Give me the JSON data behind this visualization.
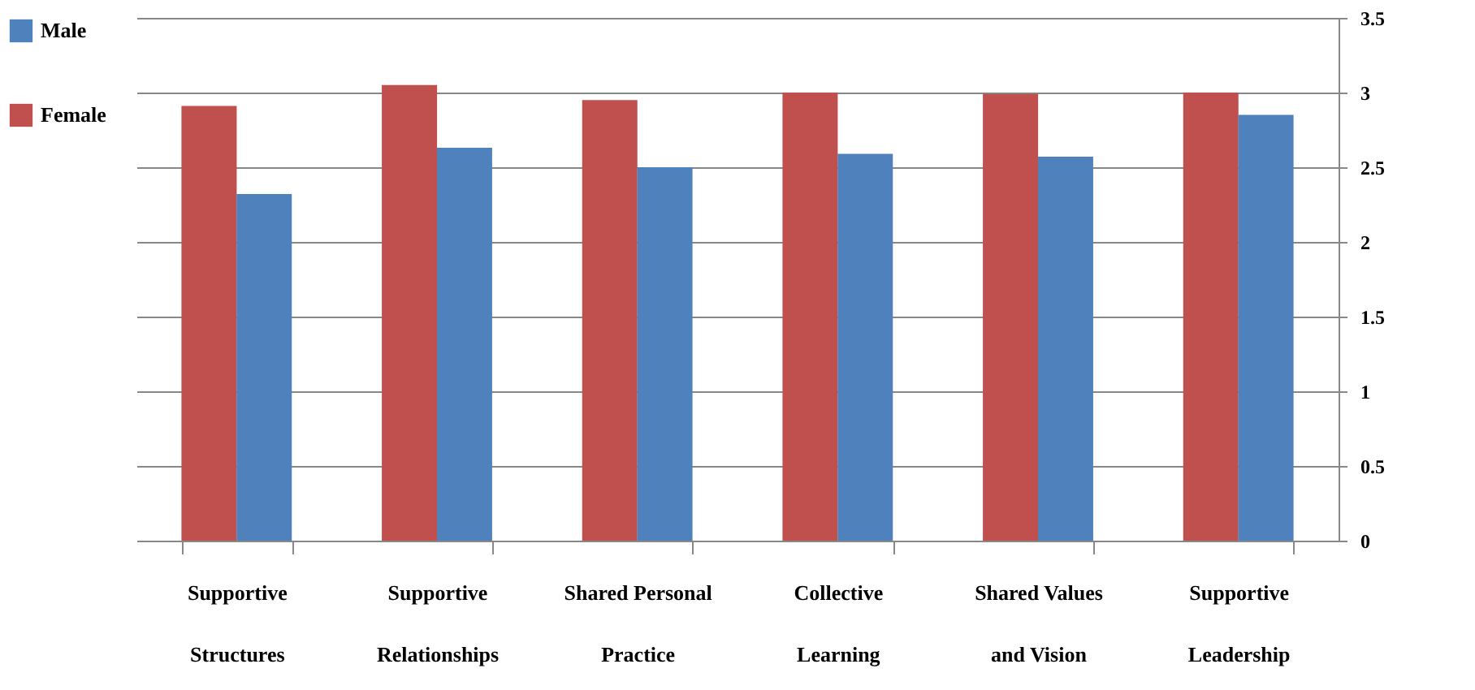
{
  "chart_data": {
    "type": "bar",
    "categories": [
      "Supportive Structures",
      "Supportive Relationships",
      "Shared Personal Practice",
      "Collective Learning",
      "Shared Values and Vision",
      "Supportive Leadership"
    ],
    "series": [
      {
        "name": "Female",
        "color": "#c0504d",
        "values": [
          2.91,
          3.05,
          2.95,
          3.0,
          2.99,
          3.0
        ]
      },
      {
        "name": "Male",
        "color": "#4f81bd",
        "values": [
          2.32,
          2.63,
          2.5,
          2.59,
          2.57,
          2.85
        ]
      }
    ],
    "ylim": [
      0,
      3.5
    ],
    "yticks": [
      0,
      0.5,
      1,
      1.5,
      2,
      2.5,
      3,
      3.5
    ],
    "grid": "y",
    "legend": "left"
  }
}
